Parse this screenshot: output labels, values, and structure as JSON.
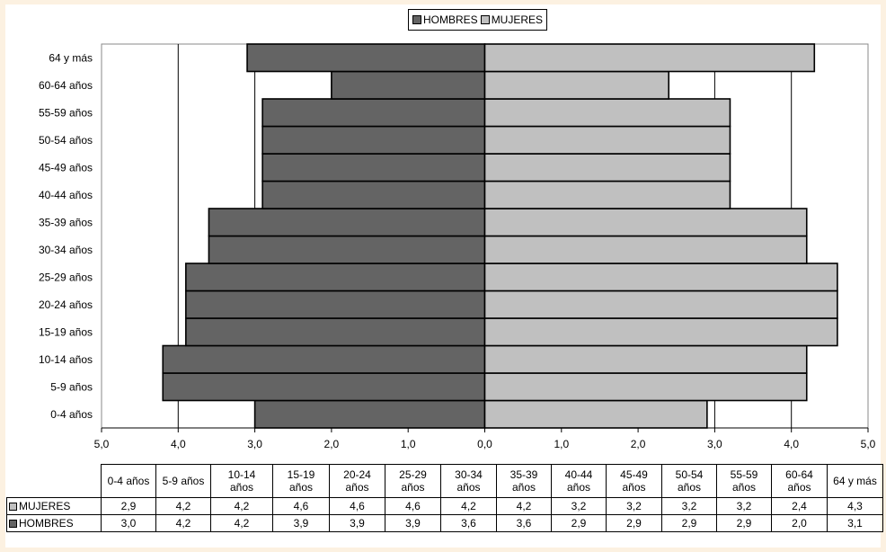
{
  "chart_data": {
    "type": "bar",
    "orientation": "horizontal",
    "layout": "population-pyramid",
    "categories": [
      "0-4 años",
      "5-9 años",
      "10-14 años",
      "15-19 años",
      "20-24 años",
      "25-29 años",
      "30-34 años",
      "35-39 años",
      "40-44 años",
      "45-49 años",
      "50-54 años",
      "55-59 años",
      "60-64 años",
      "64 y más"
    ],
    "table_headers": [
      "0-4 años",
      "5-9 años",
      "10-14\naños",
      "15-19\naños",
      "20-24\naños",
      "25-29\naños",
      "30-34\naños",
      "35-39\naños",
      "40-44\naños",
      "45-49\naños",
      "50-54\naños",
      "55-59\naños",
      "60-64\naños",
      "64 y más"
    ],
    "series": [
      {
        "name": "MUJERES",
        "color": "#c0c0c0",
        "side": "right",
        "values": [
          2.9,
          4.2,
          4.2,
          4.6,
          4.6,
          4.6,
          4.2,
          4.2,
          3.2,
          3.2,
          3.2,
          3.2,
          2.4,
          4.3
        ],
        "labels": [
          "2,9",
          "4,2",
          "4,2",
          "4,6",
          "4,6",
          "4,6",
          "4,2",
          "4,2",
          "3,2",
          "3,2",
          "3,2",
          "3,2",
          "2,4",
          "4,3"
        ]
      },
      {
        "name": "HOMBRES",
        "color": "#646464",
        "side": "left",
        "values": [
          3.0,
          4.2,
          4.2,
          3.9,
          3.9,
          3.9,
          3.6,
          3.6,
          2.9,
          2.9,
          2.9,
          2.9,
          2.0,
          3.1
        ],
        "labels": [
          "3,0",
          "4,2",
          "4,2",
          "3,9",
          "3,9",
          "3,9",
          "3,6",
          "3,6",
          "2,9",
          "2,9",
          "2,9",
          "2,9",
          "2,0",
          "3,1"
        ]
      }
    ],
    "xlim": [
      -5,
      5
    ],
    "x_ticks": [
      -5,
      -4,
      -3,
      -2,
      -1,
      0,
      1,
      2,
      3,
      4,
      5
    ],
    "x_tick_labels": [
      "5,0",
      "4,0",
      "3,0",
      "2,0",
      "1,0",
      "0,0",
      "1,0",
      "2,0",
      "3,0",
      "4,0",
      "5,0"
    ],
    "legend": {
      "position": "top-center",
      "items": [
        "HOMBRES",
        "MUJERES"
      ]
    },
    "grid": "vertical",
    "data_table": true
  }
}
